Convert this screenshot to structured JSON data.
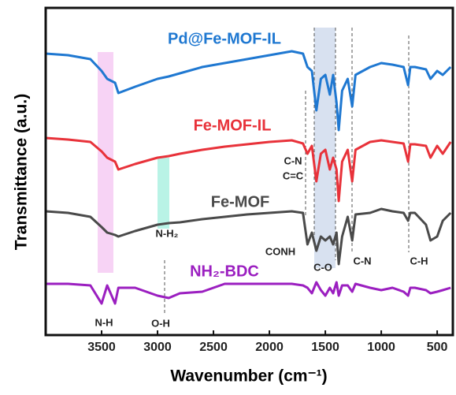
{
  "chart_data": {
    "type": "line",
    "xlabel": "Wavenumber (cm⁻¹)",
    "ylabel": "Transmittance (a.u.)",
    "xlim": [
      4000,
      360
    ],
    "xticks": [
      3500,
      3000,
      2500,
      2000,
      1500,
      1000,
      500
    ],
    "ylim": [
      -25,
      390
    ],
    "x": [
      4000,
      3800,
      3600,
      3500,
      3450,
      3380,
      3350,
      3200,
      3000,
      2900,
      2800,
      2600,
      2400,
      2200,
      2000,
      1800,
      1700,
      1660,
      1620,
      1580,
      1540,
      1500,
      1460,
      1430,
      1400,
      1380,
      1350,
      1300,
      1260,
      1230,
      1100,
      1000,
      900,
      800,
      760,
      740,
      700,
      600,
      560,
      500,
      450,
      380
    ],
    "series": [
      {
        "name": "Pd@Fe-MOF-IL",
        "color": "#1f78d1",
        "values": [
          332,
          330,
          325,
          310,
          300,
          295,
          282,
          290,
          300,
          303,
          307,
          315,
          320,
          325,
          330,
          335,
          332,
          315,
          310,
          260,
          300,
          305,
          280,
          305,
          270,
          235,
          285,
          300,
          265,
          305,
          315,
          320,
          318,
          315,
          292,
          315,
          315,
          312,
          300,
          310,
          305,
          315
        ]
      },
      {
        "name": "Fe-MOF-IL",
        "color": "#e8323a",
        "values": [
          225,
          223,
          220,
          208,
          200,
          195,
          185,
          192,
          200,
          202,
          205,
          210,
          214,
          217,
          220,
          222,
          218,
          205,
          215,
          170,
          205,
          210,
          185,
          200,
          185,
          145,
          195,
          210,
          170,
          210,
          220,
          222,
          220,
          218,
          195,
          217,
          217,
          215,
          200,
          215,
          205,
          220
        ]
      },
      {
        "name": "Fe-MOF",
        "color": "#4a4a4a",
        "values": [
          132,
          130,
          125,
          112,
          105,
          102,
          100,
          107,
          115,
          117,
          118,
          122,
          125,
          128,
          130,
          132,
          130,
          90,
          105,
          82,
          100,
          95,
          100,
          90,
          105,
          65,
          100,
          125,
          95,
          128,
          130,
          135,
          132,
          130,
          120,
          130,
          130,
          115,
          95,
          100,
          120,
          130
        ]
      },
      {
        "name": "NH₂-BDC",
        "color": "#9b1fc0",
        "values": [
          40,
          40,
          38,
          15,
          38,
          15,
          35,
          35,
          25,
          22,
          28,
          30,
          40,
          40,
          40,
          40,
          38,
          35,
          28,
          42,
          32,
          25,
          35,
          28,
          42,
          25,
          38,
          38,
          30,
          40,
          35,
          32,
          35,
          30,
          25,
          35,
          35,
          32,
          28,
          30,
          32,
          35
        ]
      }
    ],
    "annotations": [
      "C-N",
      "C=C",
      "CONH",
      "C-O",
      "C-N",
      "C-H",
      "N-H₂",
      "N-H",
      "O-H"
    ]
  }
}
